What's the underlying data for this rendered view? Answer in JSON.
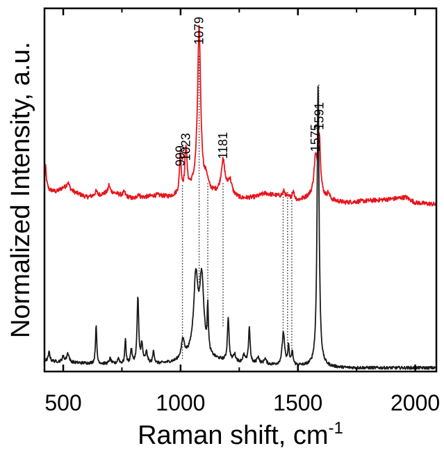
{
  "chart_data": {
    "type": "line",
    "title": "",
    "xlabel": "Raman shift, cm",
    "xlabel_superscript": "-1",
    "ylabel": "Normalized Intensity, a.u.",
    "xlim": [
      420,
      2090
    ],
    "ylim": [
      0,
      1
    ],
    "x_ticks": [
      500,
      1000,
      1500,
      2000
    ],
    "y_tick_labels_shown": false,
    "grid": false,
    "legend": "none",
    "series": [
      {
        "color": "#e8141c",
        "offset": 0.45,
        "baseline_noise": 0.006,
        "baseline": [
          [
            420,
            0.07
          ],
          [
            440,
            0.05
          ],
          [
            470,
            0.045
          ],
          [
            500,
            0.055
          ],
          [
            540,
            0.045
          ],
          [
            600,
            0.03
          ],
          [
            650,
            0.035
          ],
          [
            700,
            0.045
          ],
          [
            750,
            0.035
          ],
          [
            800,
            0.025
          ],
          [
            850,
            0.03
          ],
          [
            900,
            0.035
          ],
          [
            950,
            0.03
          ],
          [
            980,
            0.035
          ],
          [
            1040,
            0.05
          ],
          [
            1080,
            0.055
          ],
          [
            1130,
            0.04
          ],
          [
            1200,
            0.035
          ],
          [
            1260,
            0.025
          ],
          [
            1320,
            0.03
          ],
          [
            1360,
            0.04
          ],
          [
            1400,
            0.035
          ],
          [
            1450,
            0.03
          ],
          [
            1500,
            0.02
          ],
          [
            1550,
            0.03
          ],
          [
            1600,
            0.03
          ],
          [
            1650,
            0.02
          ],
          [
            1700,
            0.015
          ],
          [
            1800,
            0.02
          ],
          [
            1900,
            0.025
          ],
          [
            1960,
            0.03
          ],
          [
            2000,
            0.015
          ],
          [
            2090,
            0.01
          ]
        ],
        "peaks": [
          {
            "x": 425,
            "h": 0.05,
            "w": 3
          },
          {
            "x": 520,
            "h": 0.02,
            "w": 8
          },
          {
            "x": 640,
            "h": 0.012,
            "w": 6
          },
          {
            "x": 695,
            "h": 0.02,
            "w": 4
          },
          {
            "x": 760,
            "h": 0.012,
            "w": 5
          },
          {
            "x": 820,
            "h": 0.012,
            "w": 6
          },
          {
            "x": 999,
            "h": 0.11,
            "w": 4
          },
          {
            "x": 1023,
            "h": 0.12,
            "w": 5
          },
          {
            "x": 1079,
            "h": 0.44,
            "w": 8
          },
          {
            "x": 1110,
            "h": 0.03,
            "w": 8
          },
          {
            "x": 1181,
            "h": 0.09,
            "w": 10
          },
          {
            "x": 1210,
            "h": 0.04,
            "w": 10
          },
          {
            "x": 1440,
            "h": 0.015,
            "w": 6
          },
          {
            "x": 1480,
            "h": 0.02,
            "w": 6
          },
          {
            "x": 1575,
            "h": 0.1,
            "w": 8
          },
          {
            "x": 1591,
            "h": 0.16,
            "w": 6
          },
          {
            "x": 1630,
            "h": 0.015,
            "w": 6
          }
        ]
      },
      {
        "color": "#1a1a1a",
        "offset": 0.0,
        "baseline_noise": 0.004,
        "baseline": [
          [
            420,
            0.03
          ],
          [
            500,
            0.025
          ],
          [
            700,
            0.02
          ],
          [
            900,
            0.02
          ],
          [
            980,
            0.025
          ],
          [
            1050,
            0.04
          ],
          [
            1150,
            0.03
          ],
          [
            1300,
            0.02
          ],
          [
            1500,
            0.015
          ],
          [
            1700,
            0.01
          ],
          [
            2090,
            0.01
          ]
        ],
        "peaks": [
          {
            "x": 440,
            "h": 0.025,
            "w": 4
          },
          {
            "x": 500,
            "h": 0.015,
            "w": 6
          },
          {
            "x": 520,
            "h": 0.025,
            "w": 6
          },
          {
            "x": 640,
            "h": 0.11,
            "w": 3
          },
          {
            "x": 700,
            "h": 0.015,
            "w": 5
          },
          {
            "x": 735,
            "h": 0.015,
            "w": 5
          },
          {
            "x": 765,
            "h": 0.07,
            "w": 3
          },
          {
            "x": 790,
            "h": 0.04,
            "w": 4
          },
          {
            "x": 818,
            "h": 0.18,
            "w": 4
          },
          {
            "x": 835,
            "h": 0.05,
            "w": 5
          },
          {
            "x": 855,
            "h": 0.03,
            "w": 5
          },
          {
            "x": 885,
            "h": 0.035,
            "w": 4
          },
          {
            "x": 1010,
            "h": 0.05,
            "w": 8
          },
          {
            "x": 1065,
            "h": 0.21,
            "w": 11
          },
          {
            "x": 1090,
            "h": 0.21,
            "w": 11
          },
          {
            "x": 1116,
            "h": 0.12,
            "w": 3
          },
          {
            "x": 1203,
            "h": 0.12,
            "w": 4
          },
          {
            "x": 1230,
            "h": 0.02,
            "w": 6
          },
          {
            "x": 1270,
            "h": 0.02,
            "w": 6
          },
          {
            "x": 1293,
            "h": 0.1,
            "w": 4
          },
          {
            "x": 1330,
            "h": 0.02,
            "w": 6
          },
          {
            "x": 1360,
            "h": 0.015,
            "w": 6
          },
          {
            "x": 1438,
            "h": 0.09,
            "w": 6
          },
          {
            "x": 1460,
            "h": 0.05,
            "w": 4
          },
          {
            "x": 1476,
            "h": 0.035,
            "w": 4
          },
          {
            "x": 1586,
            "h": 0.78,
            "w": 5
          }
        ]
      }
    ],
    "peak_labels": [
      {
        "text": "999",
        "x": 999,
        "y": 0.565
      },
      {
        "text": "1023",
        "x": 1023,
        "y": 0.58
      },
      {
        "text": "1079",
        "x": 1079,
        "y": 0.9
      },
      {
        "text": "1181",
        "x": 1181,
        "y": 0.585
      },
      {
        "text": "1575",
        "x": 1575,
        "y": 0.605
      },
      {
        "text": "1591",
        "x": 1591,
        "y": 0.665
      }
    ],
    "dotted_lines": [
      {
        "x": 1008,
        "y1": 0.035,
        "y2": 0.515
      },
      {
        "x": 1079,
        "y1": 0.245,
        "y2": 0.87
      },
      {
        "x": 1116,
        "y1": 0.125,
        "y2": 0.52
      },
      {
        "x": 1181,
        "y1": 0.125,
        "y2": 0.52
      },
      {
        "x": 1437,
        "y1": 0.095,
        "y2": 0.495
      },
      {
        "x": 1456,
        "y1": 0.07,
        "y2": 0.495
      },
      {
        "x": 1474,
        "y1": 0.055,
        "y2": 0.495
      },
      {
        "x": 1589,
        "y1": 0.79,
        "y2": 0.6
      }
    ]
  }
}
